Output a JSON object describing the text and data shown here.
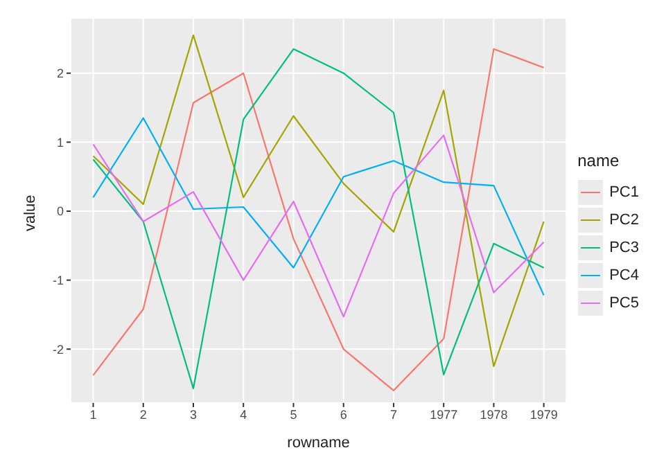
{
  "chart_data": {
    "type": "line",
    "xlabel": "rowname",
    "ylabel": "value",
    "legend_title": "name",
    "categories": [
      "1",
      "2",
      "3",
      "4",
      "5",
      "6",
      "7",
      "1977",
      "1978",
      "1979"
    ],
    "series": [
      {
        "name": "PC1",
        "color": "#f8766d",
        "values": [
          -2.38,
          -1.42,
          1.57,
          2.0,
          -0.4,
          -2.0,
          -2.6,
          -1.85,
          2.35,
          2.08
        ]
      },
      {
        "name": "PC2",
        "color": "#a3a500",
        "values": [
          0.8,
          0.1,
          2.55,
          0.2,
          1.38,
          0.4,
          -0.3,
          1.75,
          -2.25,
          -0.15
        ]
      },
      {
        "name": "PC3",
        "color": "#00bf7d",
        "values": [
          0.75,
          -0.15,
          -2.57,
          1.33,
          2.35,
          2.0,
          1.43,
          -2.37,
          -0.47,
          -0.82
        ]
      },
      {
        "name": "PC4",
        "color": "#00b0f6",
        "values": [
          0.2,
          1.35,
          0.03,
          0.06,
          -0.82,
          0.5,
          0.73,
          0.42,
          0.37,
          -1.22
        ]
      },
      {
        "name": "PC5",
        "color": "#e76bf3",
        "values": [
          0.97,
          -0.15,
          0.28,
          -1.0,
          0.14,
          -1.53,
          0.26,
          1.1,
          -1.18,
          -0.45
        ]
      }
    ],
    "ylim": [
      -2.78,
      2.8
    ],
    "yticks": [
      -2,
      -1,
      0,
      1,
      2
    ],
    "grid": true,
    "legend": "right",
    "marker": "none",
    "line_style": "solid"
  }
}
